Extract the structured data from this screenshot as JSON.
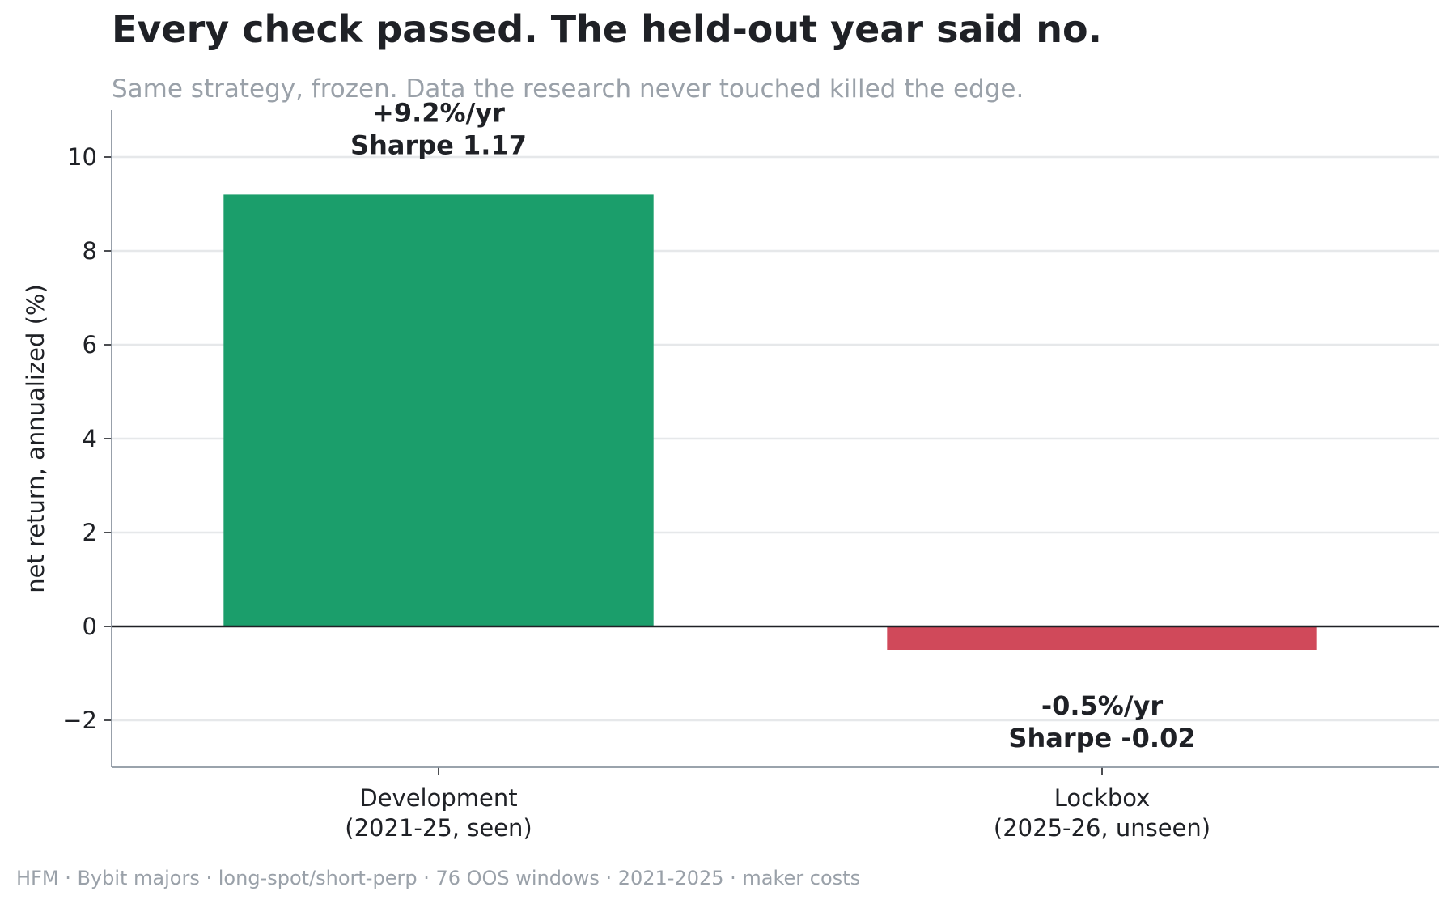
{
  "chart_data": {
    "type": "bar",
    "title": "Every check passed. The held-out year said no.",
    "subtitle": "Same strategy, frozen. Data the research never touched killed the edge.",
    "ylabel": "net return, annualized (%)",
    "xlabel": "",
    "ylim": [
      -3,
      11
    ],
    "yticks": [
      -2,
      0,
      2,
      4,
      6,
      8,
      10
    ],
    "ytick_labels": [
      "−2",
      "0",
      "2",
      "4",
      "6",
      "8",
      "10"
    ],
    "grid": "horizontal",
    "categories": [
      [
        "Development",
        "(2021-25, seen)"
      ],
      [
        "Lockbox",
        "(2025-26, unseen)"
      ]
    ],
    "values": [
      9.2,
      -0.5
    ],
    "colors": [
      "#1b9e6b",
      "#d0495a"
    ],
    "data_labels": [
      [
        "+9.2%/yr",
        "Sharpe 1.17"
      ],
      [
        "-0.5%/yr",
        "Sharpe -0.02"
      ]
    ],
    "footer": "HFM · Bybit majors · long-spot/short-perp · 76 OOS windows · 2021-2025 · maker costs"
  }
}
